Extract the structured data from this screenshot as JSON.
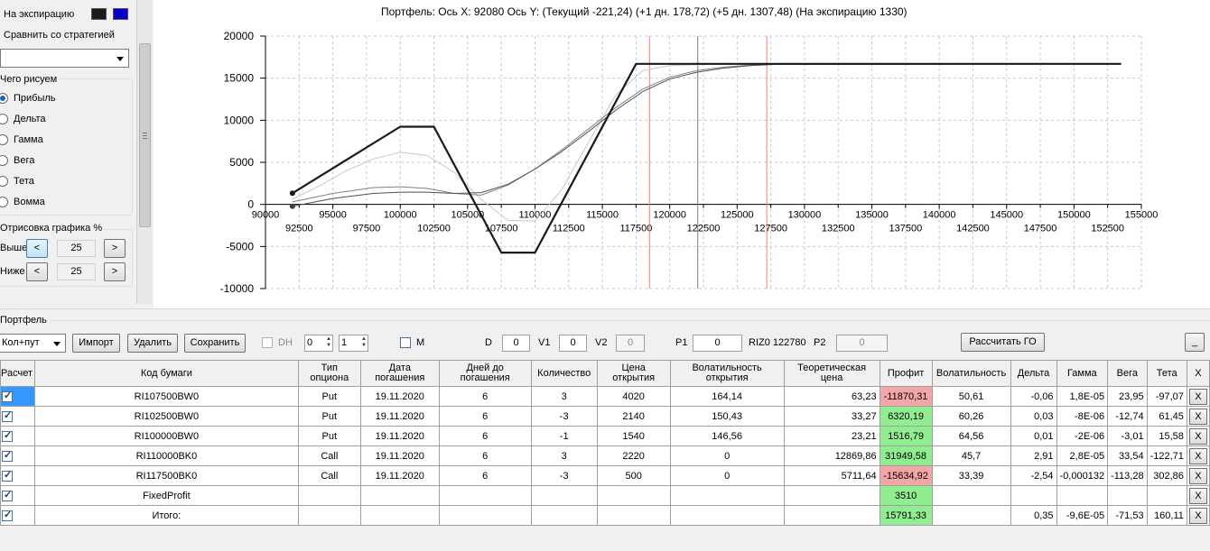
{
  "left_panel": {
    "expiry_label": "На экспирацию",
    "expiry_colors": [
      "#1a1a1a",
      "#0000cc"
    ],
    "compare_label": "Сравнить со стратегией",
    "compare_value": "",
    "what_plot_label": "Чего рисуем",
    "plot_options": [
      {
        "label": "Прибыль",
        "selected": true
      },
      {
        "label": "Дельта",
        "selected": false
      },
      {
        "label": "Гамма",
        "selected": false
      },
      {
        "label": "Вега",
        "selected": false
      },
      {
        "label": "Тета",
        "selected": false
      },
      {
        "label": "Вомма",
        "selected": false
      }
    ],
    "draw_label": "Отрисовка графика %",
    "above_label": "Выше",
    "below_label": "Ниже",
    "above_value": "25",
    "below_value": "25",
    "dec_label": "<",
    "inc_label": ">"
  },
  "chart_title": "Портфель: Ось X: 92080 Ось Y:  (Текущий -221,24)  (+1 дн. 178,72)  (+5 дн. 1307,48)  (На экспирацию 1330)",
  "chart_data": {
    "type": "line",
    "xlim": [
      90000,
      155000
    ],
    "ylim": [
      -10000,
      20000
    ],
    "y_ticks": [
      "20000",
      "15000",
      "10000",
      "5000",
      "0",
      "-5000",
      "-10000"
    ],
    "x_ticks_upper": [
      "90000",
      "95000",
      "100000",
      "105000",
      "110000",
      "115000",
      "120000",
      "125000",
      "130000",
      "135000",
      "140000",
      "145000",
      "150000",
      "155000"
    ],
    "x_ticks_lower": [
      "92500",
      "97500",
      "102500",
      "107500",
      "112500",
      "117500",
      "122500",
      "127500",
      "132500",
      "137500",
      "142500",
      "147500",
      "152500"
    ],
    "grid": true,
    "vertical_lines": [
      {
        "x": 118500,
        "color": "#f08080"
      },
      {
        "x": 122080,
        "color": "#708090"
      },
      {
        "x": 127200,
        "color": "#f08080"
      }
    ],
    "series": [
      {
        "color": "#1a1a1a",
        "width": 2.2,
        "x": [
          92000,
          100000,
          102500,
          107500,
          110000,
          117500,
          153500
        ],
        "y": [
          1330,
          9230,
          9230,
          -5720,
          -5720,
          16700,
          16700
        ]
      },
      {
        "color": "#c8c8c8",
        "width": 1,
        "x": [
          92000,
          94000,
          96000,
          98000,
          100000,
          102000,
          104000,
          106000,
          108000,
          110000,
          112000,
          114000,
          116000,
          118000,
          120000,
          122000,
          124000,
          127000,
          153500
        ],
        "y": [
          600,
          2200,
          4000,
          5400,
          6200,
          5800,
          3800,
          600,
          -1900,
          -2000,
          1800,
          7500,
          13000,
          15900,
          16500,
          16600,
          16650,
          16700,
          16700
        ]
      },
      {
        "color": "#808080",
        "width": 1,
        "x": [
          92000,
          95000,
          98000,
          100000,
          102000,
          104000,
          106000,
          108000,
          110000,
          112000,
          114000,
          116000,
          118000,
          120000,
          122000,
          124000,
          126000,
          128000,
          153500
        ],
        "y": [
          300,
          1300,
          2000,
          2100,
          1900,
          1300,
          1100,
          2300,
          4200,
          6500,
          9000,
          11500,
          13700,
          15100,
          15900,
          16300,
          16550,
          16650,
          16700
        ]
      },
      {
        "color": "#505050",
        "width": 1,
        "x": [
          92000,
          95000,
          98000,
          100000,
          102000,
          104000,
          106000,
          108000,
          110000,
          112000,
          114000,
          116000,
          118000,
          120000,
          122000,
          124000,
          126000,
          128000,
          153500
        ],
        "y": [
          -221,
          700,
          1300,
          1450,
          1450,
          1300,
          1400,
          2400,
          4200,
          6300,
          8700,
          11200,
          13400,
          14900,
          15700,
          16200,
          16500,
          16650,
          16700
        ]
      }
    ],
    "markers": [
      {
        "x": 92000,
        "y": 1330,
        "color": "#1a1a1a"
      },
      {
        "x": 92000,
        "y": -221,
        "color": "#404040"
      }
    ]
  },
  "portfolio": {
    "group_label": "Портфель",
    "strategy_value": "Кол+пут",
    "import_label": "Импорт",
    "delete_label": "Удалить",
    "save_label": "Сохранить",
    "dh_label": "DH",
    "spin1_value": "0",
    "spin2_value": "1",
    "m_label": "M",
    "d_label": "D",
    "d_value": "0",
    "v1_label": "V1",
    "v1_value": "0",
    "v2_label": "V2",
    "v2_value": "0",
    "p1_label": "P1",
    "p1_value": "0",
    "riz_label": "RIZ0 122780",
    "p2_label": "P2",
    "p2_value": "0",
    "calc_go_label": "Рассчитать ГО",
    "minimize_label": "_"
  },
  "table": {
    "columns": [
      "Расчет",
      "Код бумаги",
      "Тип опциона",
      "Дата погашения",
      "Дней до погашения",
      "Количество",
      "Цена открытия",
      "Волатильность открытия",
      "Теоретическая цена",
      "Профит",
      "Волатильность",
      "Дельта",
      "Гамма",
      "Вега",
      "Тета",
      "X"
    ],
    "rows": [
      {
        "checked": true,
        "code": "RI107500BW0",
        "type": "Put",
        "date": "19.11.2020",
        "days": "6",
        "qty": "3",
        "price": "4020",
        "vol_open": "164,14",
        "theo": "63,23",
        "profit": "-11870,31",
        "profit_class": "neg",
        "vol": "50,61",
        "delta": "-0,06",
        "gamma": "1,8E-05",
        "vega": "23,95",
        "theta": "-97,07",
        "x": "X"
      },
      {
        "checked": true,
        "code": "RI102500BW0",
        "type": "Put",
        "date": "19.11.2020",
        "days": "6",
        "qty": "-3",
        "price": "2140",
        "vol_open": "150,43",
        "theo": "33,27",
        "profit": "6320,19",
        "profit_class": "pos",
        "vol": "60,26",
        "delta": "0,03",
        "gamma": "-8E-06",
        "vega": "-12,74",
        "theta": "61,45",
        "x": "X"
      },
      {
        "checked": true,
        "code": "RI100000BW0",
        "type": "Put",
        "date": "19.11.2020",
        "days": "6",
        "qty": "-1",
        "price": "1540",
        "vol_open": "146,56",
        "theo": "23,21",
        "profit": "1516,79",
        "profit_class": "pos",
        "vol": "64,56",
        "delta": "0,01",
        "gamma": "-2E-06",
        "vega": "-3,01",
        "theta": "15,58",
        "x": "X"
      },
      {
        "checked": true,
        "code": "RI110000BK0",
        "type": "Call",
        "date": "19.11.2020",
        "days": "6",
        "qty": "3",
        "price": "2220",
        "vol_open": "0",
        "theo": "12869,86",
        "profit": "31949,58",
        "profit_class": "pos",
        "vol": "45,7",
        "delta": "2,91",
        "gamma": "2,8E-05",
        "vega": "33,54",
        "theta": "-122,71",
        "x": "X"
      },
      {
        "checked": true,
        "code": "RI117500BK0",
        "type": "Call",
        "date": "19.11.2020",
        "days": "6",
        "qty": "-3",
        "price": "500",
        "vol_open": "0",
        "theo": "5711,64",
        "profit": "-15634,92",
        "profit_class": "neg",
        "vol": "33,39",
        "delta": "-2,54",
        "gamma": "-0,000132",
        "vega": "-113,28",
        "theta": "302,86",
        "x": "X"
      },
      {
        "checked": true,
        "code": "FixedProfit",
        "type": "",
        "date": "",
        "days": "",
        "qty": "",
        "price": "",
        "vol_open": "",
        "theo": "",
        "profit": "3510",
        "profit_class": "pos",
        "vol": "",
        "delta": "",
        "gamma": "",
        "vega": "",
        "theta": "",
        "x": "X"
      },
      {
        "checked": true,
        "code": "Итого:",
        "type": "",
        "date": "",
        "days": "",
        "qty": "",
        "price": "",
        "vol_open": "",
        "theo": "",
        "profit": "15791,33",
        "profit_class": "pos",
        "vol": "",
        "delta": "0,35",
        "gamma": "-9,6E-05",
        "vega": "-71,53",
        "theta": "160,11",
        "x": "X"
      }
    ]
  }
}
